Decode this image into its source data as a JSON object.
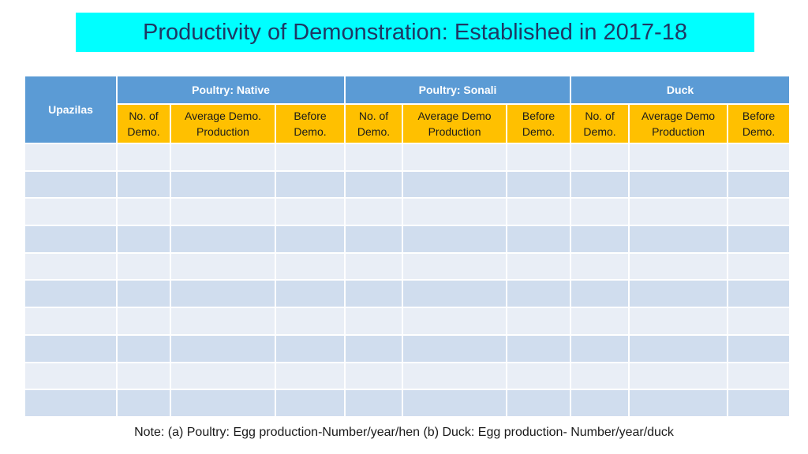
{
  "title": "Productivity of Demonstration: Established in 2017-18",
  "table": {
    "row_header": "Upazilas",
    "groups": [
      "Poultry: Native",
      "Poultry: Sonali",
      "Duck"
    ],
    "subheaders": [
      [
        "No. of Demo.",
        "Average Demo. Production",
        "Before Demo."
      ],
      [
        "No. of Demo.",
        "Average Demo Production",
        "Before Demo."
      ],
      [
        "No. of Demo.",
        "Average Demo Production",
        "Before Demo."
      ]
    ],
    "empty_rows": 10
  },
  "note": "Note: (a) Poultry: Egg production-Number/year/hen  (b) Duck: Egg production- Number/year/duck",
  "colors": {
    "title_bg": "#00ffff",
    "header_blue": "#5b9bd5",
    "subheader_yellow": "#ffc000",
    "row_light": "#e9eef6",
    "row_dark": "#d0ddee"
  }
}
